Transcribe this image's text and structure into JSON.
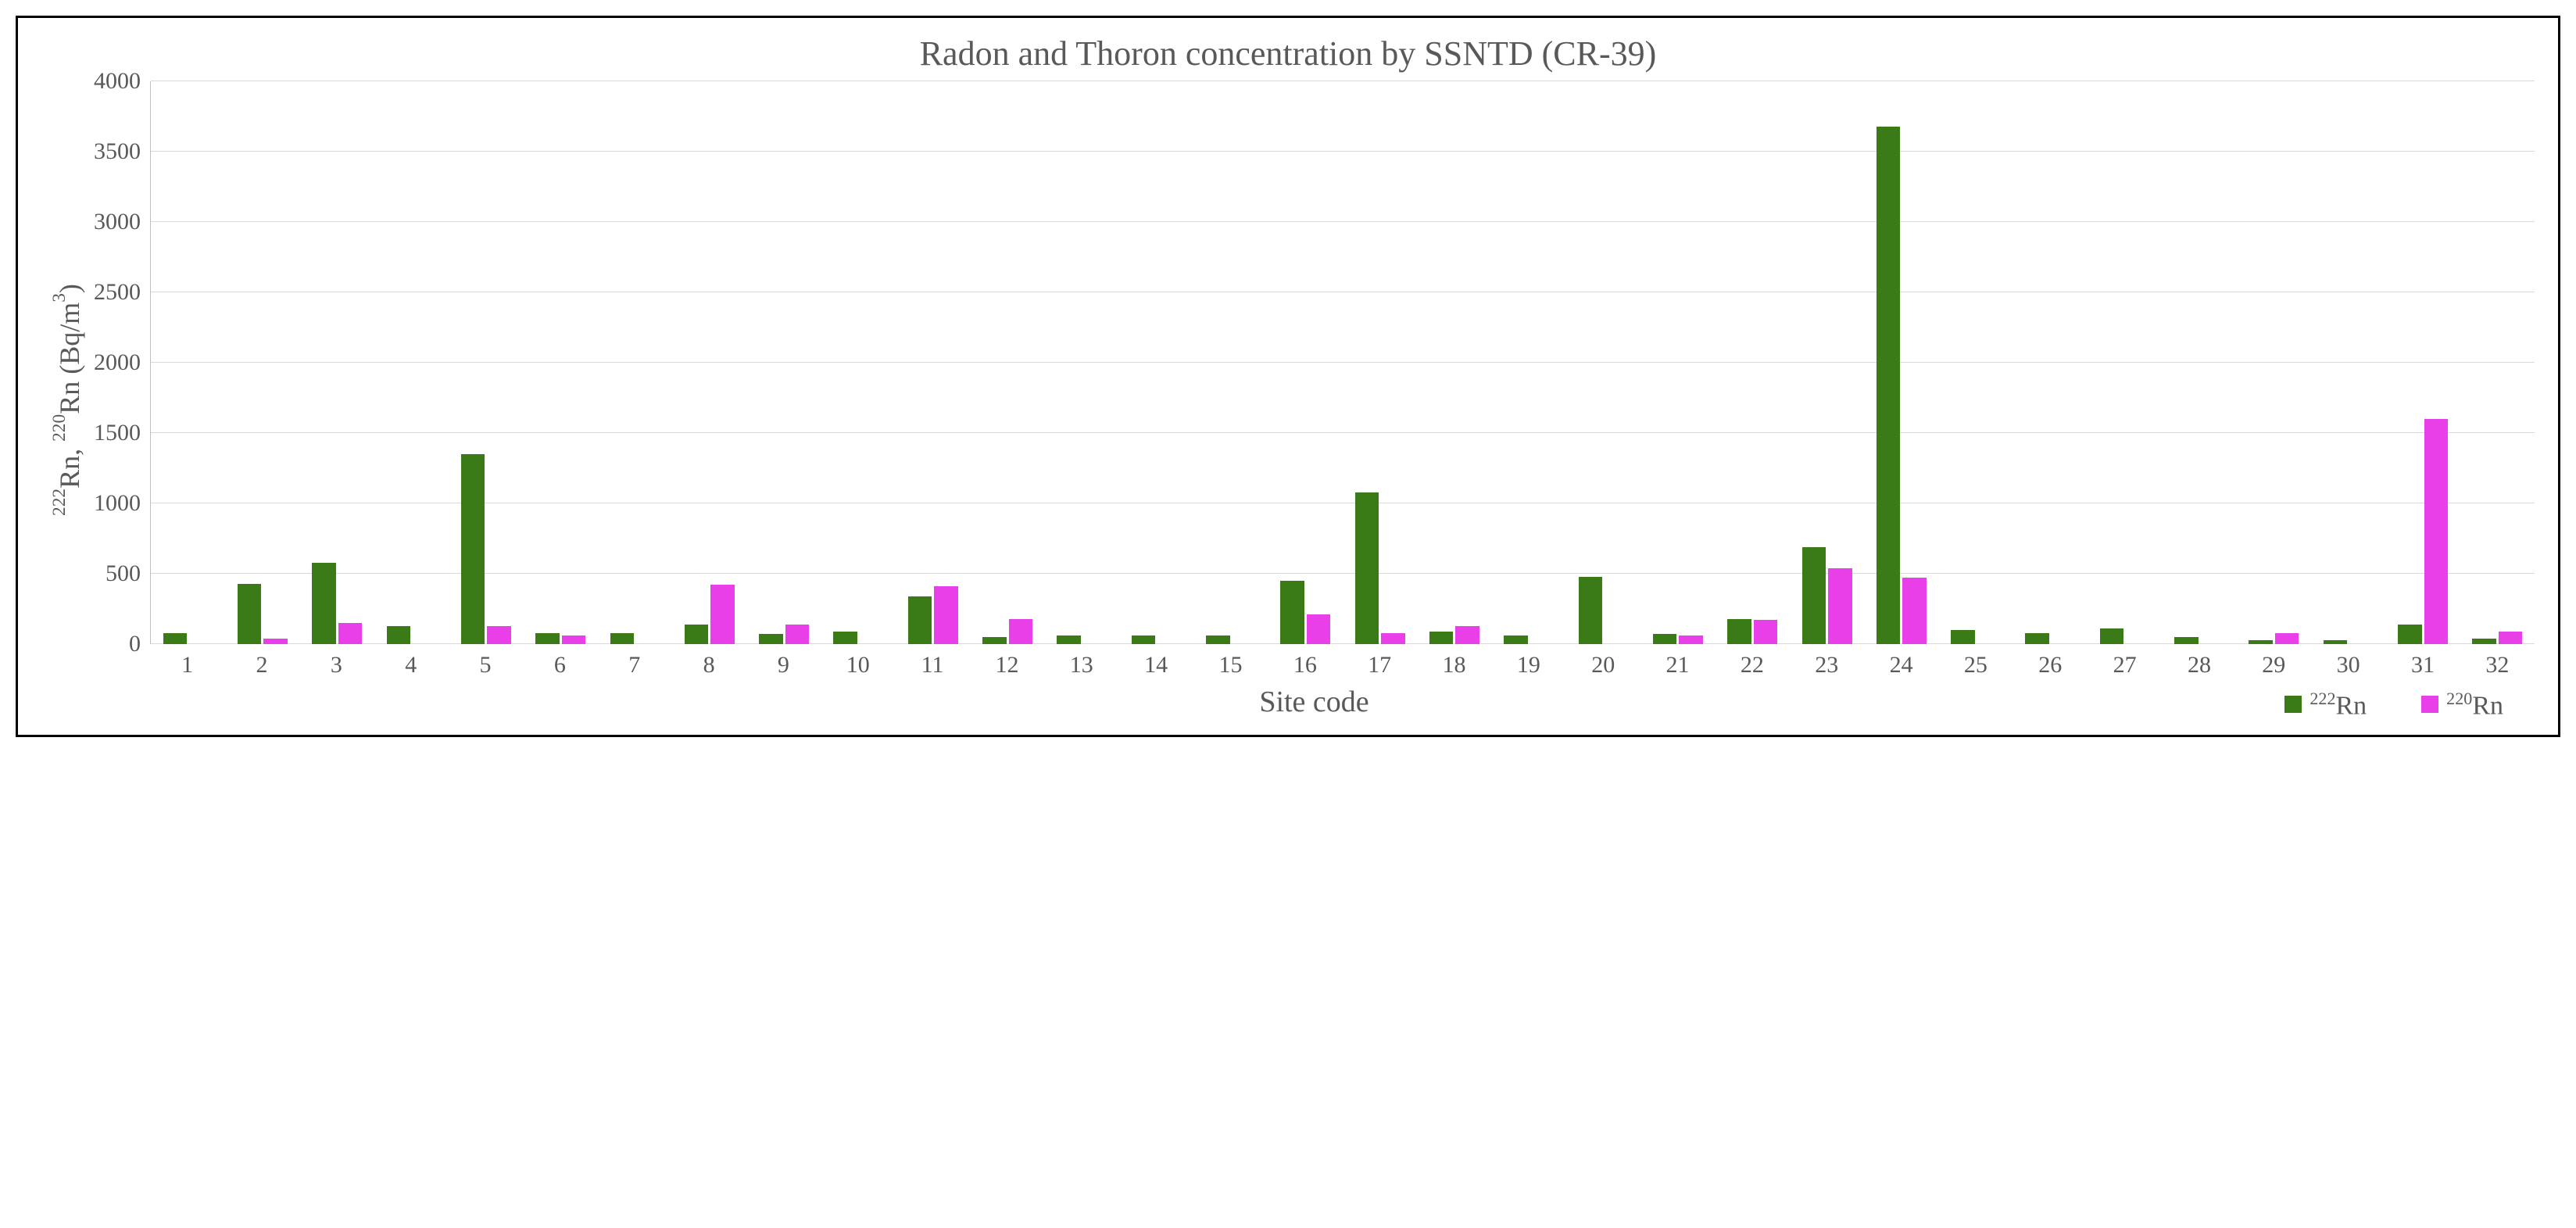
{
  "chart": {
    "type": "bar",
    "title": "Radon and Thoron concentration by SSNTD (CR-39)",
    "title_fontsize": 44,
    "title_color": "#595959",
    "x_label": "Site code",
    "x_label_fontsize": 38,
    "y_label_prefix_sup1": "222",
    "y_label_mid1": "Rn, ",
    "y_label_prefix_sup2": "220",
    "y_label_mid2": "Rn (Bq/m",
    "y_label_sup3": "3",
    "y_label_end": ")",
    "y_label_fontsize": 36,
    "label_color": "#595959",
    "tick_fontsize": 30,
    "tick_color": "#595959",
    "ylim": [
      0,
      4000
    ],
    "ytick_step": 500,
    "yticks": [
      0,
      500,
      1000,
      1500,
      2000,
      2500,
      3000,
      3500,
      4000
    ],
    "grid_color": "#d9d9d9",
    "axis_color": "#bfbfbf",
    "background_color": "#ffffff",
    "frame_border_color": "#000000",
    "frame_border_width": 3,
    "bar_group_gap_ratio": 0.3,
    "bar_width_ratio": 0.32,
    "categories": [
      "1",
      "2",
      "3",
      "4",
      "5",
      "6",
      "7",
      "8",
      "9",
      "10",
      "11",
      "12",
      "13",
      "14",
      "15",
      "16",
      "17",
      "18",
      "19",
      "20",
      "21",
      "22",
      "23",
      "24",
      "25",
      "26",
      "27",
      "28",
      "29",
      "30",
      "31",
      "32"
    ],
    "series": [
      {
        "name_sup": "222",
        "name_text": "Rn",
        "color": "#3a7a17",
        "values": [
          80,
          430,
          580,
          130,
          1350,
          80,
          80,
          140,
          70,
          90,
          340,
          50,
          60,
          60,
          60,
          450,
          1080,
          90,
          60,
          480,
          70,
          180,
          690,
          3680,
          100,
          80,
          110,
          50,
          30,
          30,
          140,
          40
        ]
      },
      {
        "name_sup": "220",
        "name_text": "Rn",
        "color": "#e83fe8",
        "values": [
          0,
          40,
          150,
          0,
          130,
          60,
          0,
          420,
          140,
          0,
          410,
          180,
          0,
          0,
          0,
          210,
          80,
          130,
          0,
          0,
          60,
          170,
          540,
          470,
          0,
          0,
          0,
          0,
          80,
          0,
          1600,
          90
        ]
      }
    ],
    "legend": {
      "position": "bottom-right",
      "fontsize": 34,
      "swatch_size": 22
    }
  }
}
